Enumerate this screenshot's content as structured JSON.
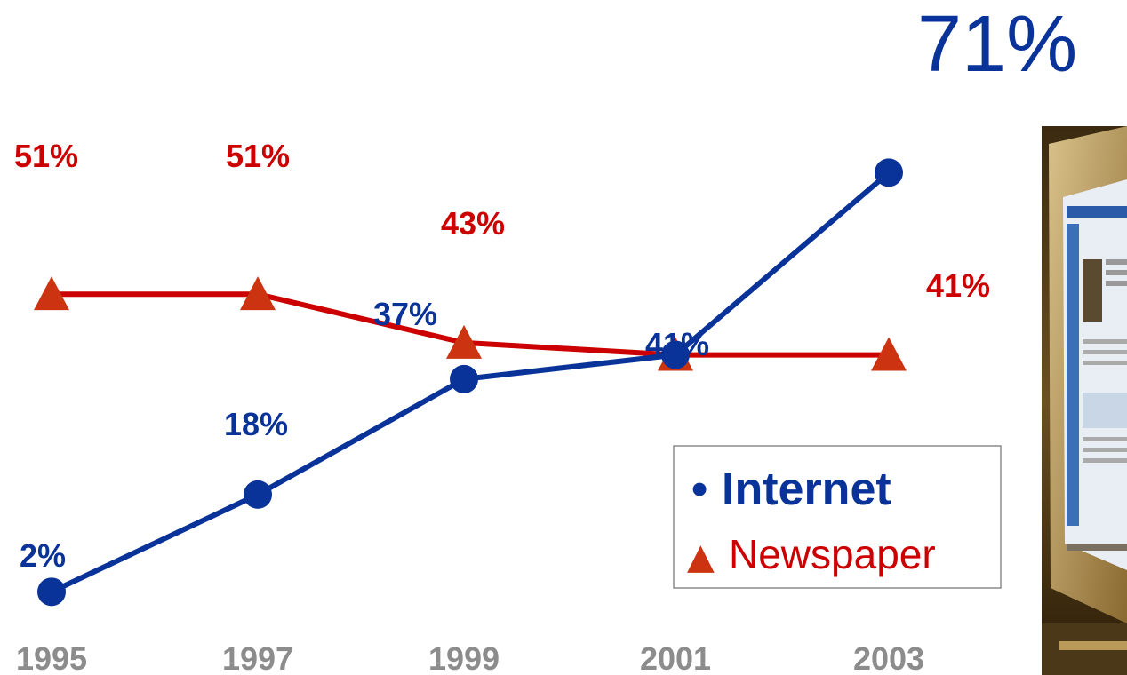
{
  "chart_data": {
    "type": "line",
    "categories": [
      "1995",
      "1997",
      "1999",
      "2001",
      "2003"
    ],
    "series": [
      {
        "name": "Internet",
        "values": [
          2,
          18,
          37,
          41,
          71
        ],
        "labels": [
          "2%",
          "18%",
          "37%",
          "41%",
          "71%"
        ],
        "color": "#0a3399",
        "marker": "circle"
      },
      {
        "name": "Newspaper",
        "values": [
          51,
          51,
          43,
          41,
          41
        ],
        "labels": [
          "51%",
          "51%",
          "43%",
          "",
          "41%"
        ],
        "color": "#cc0000",
        "marker": "triangle"
      }
    ],
    "legend": {
      "position": "bottom-right",
      "items": [
        {
          "bullet": "•",
          "label": "Internet"
        },
        {
          "bullet": "▲",
          "label": "Newspaper"
        }
      ]
    },
    "tick_color": "#8c8c8c",
    "grid": false
  },
  "photo": {
    "icon": "computer-monitor-photo"
  }
}
